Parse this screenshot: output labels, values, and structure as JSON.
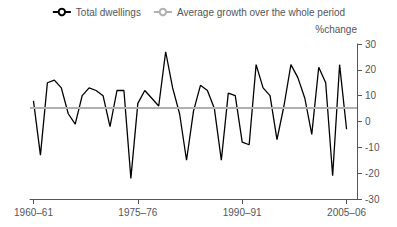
{
  "chart_data": {
    "type": "line",
    "ylabel": "%change",
    "x": [
      1960,
      1961,
      1962,
      1963,
      1964,
      1965,
      1966,
      1967,
      1968,
      1969,
      1970,
      1971,
      1972,
      1973,
      1974,
      1975,
      1976,
      1977,
      1978,
      1979,
      1980,
      1981,
      1982,
      1983,
      1984,
      1985,
      1986,
      1987,
      1988,
      1989,
      1990,
      1991,
      1992,
      1993,
      1994,
      1995,
      1996,
      1997,
      1998,
      1999,
      2000,
      2001,
      2002,
      2003,
      2004,
      2005
    ],
    "series": [
      {
        "name": "Total dwellings",
        "type": "line",
        "color": "#000000",
        "values": [
          8,
          -13,
          15,
          16,
          13,
          3,
          -1,
          10,
          13,
          12,
          10,
          -2,
          12,
          12,
          -22,
          7,
          12,
          9,
          6,
          27,
          13,
          3,
          -15,
          4,
          14,
          12,
          5,
          -15,
          11,
          10,
          -8,
          -9,
          22,
          13,
          10,
          -7,
          6,
          22,
          17,
          9,
          -5,
          21,
          15,
          -21,
          22,
          -3
        ]
      },
      {
        "name": "Average growth over the whole period",
        "type": "hline",
        "color": "#b0b0b0",
        "y": 5.5
      }
    ],
    "xlim": [
      1959.5,
      2006.5
    ],
    "xticks": [
      {
        "value": 1960,
        "label": "1960–61"
      },
      {
        "value": 1975,
        "label": "1975–76"
      },
      {
        "value": 1990,
        "label": "1990–91"
      },
      {
        "value": 2005,
        "label": "2005–06"
      }
    ],
    "ylim": [
      -30,
      30
    ],
    "yticks": [
      -30,
      -20,
      -10,
      0,
      10,
      20,
      30
    ],
    "grid": false,
    "legend": "top"
  }
}
